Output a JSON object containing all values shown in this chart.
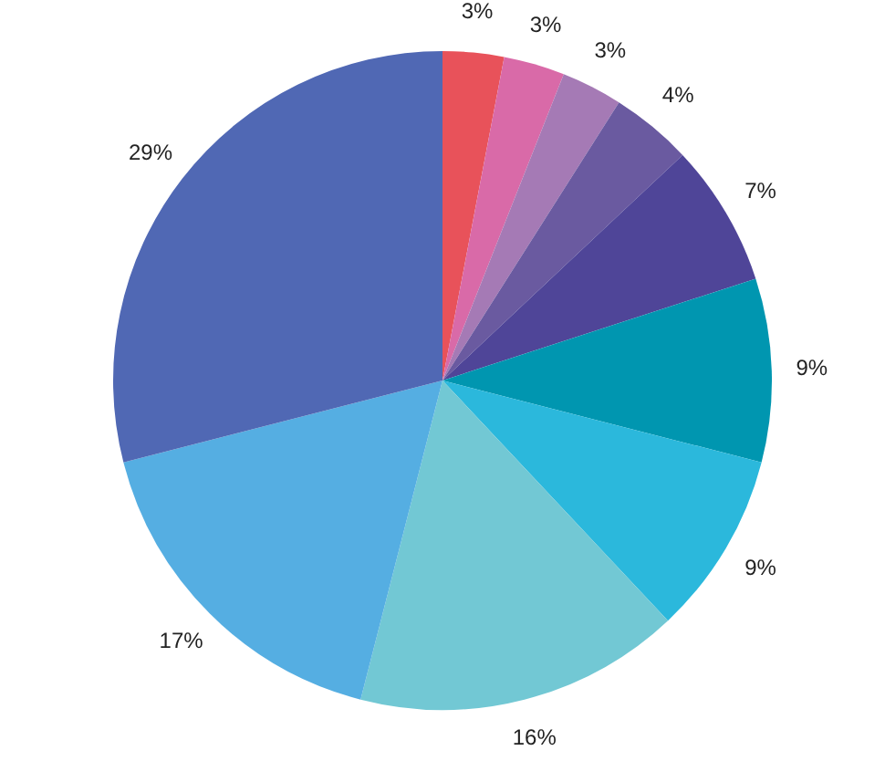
{
  "chart_data": {
    "type": "pie",
    "categories": [
      null,
      null,
      null,
      null,
      null,
      null,
      null,
      null,
      null,
      null
    ],
    "values": [
      3,
      3,
      3,
      4,
      7,
      9,
      9,
      16,
      17,
      29
    ],
    "value_labels": [
      "3%",
      "3%",
      "3%",
      "4%",
      "7%",
      "9%",
      "9%",
      "16%",
      "17%",
      "29%"
    ],
    "colors": [
      "#e8525a",
      "#d96aa8",
      "#a57ab5",
      "#6a5aa0",
      "#4f4598",
      "#0096b0",
      "#2bb8dc",
      "#72c8d4",
      "#55aee2",
      "#5068b4"
    ],
    "legend": false
  }
}
